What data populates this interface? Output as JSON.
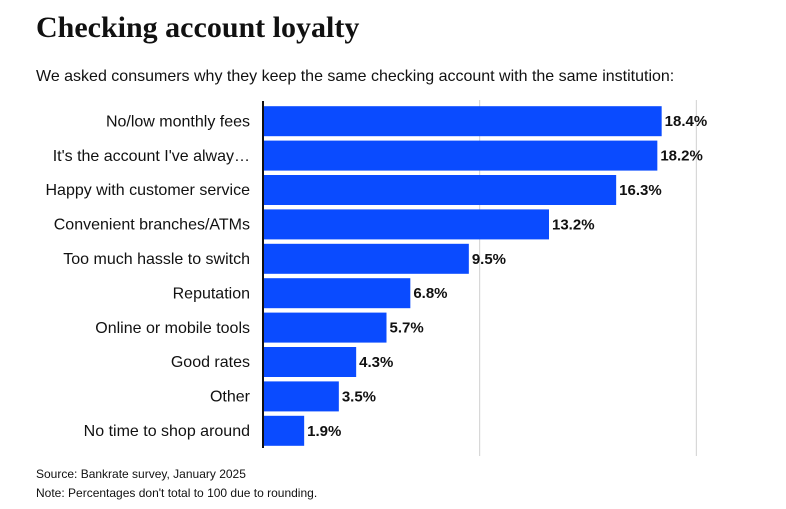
{
  "chart_data": {
    "type": "hbar",
    "title": "Checking account loyalty",
    "subtitle": "We asked consumers why they keep the same checking account with the same institution:",
    "categories": [
      "No/low monthly fees",
      "It's the account I've alway…",
      "Happy with customer service",
      "Convenient branches/ATMs",
      "Too much hassle to switch",
      "Reputation",
      "Online or mobile tools",
      "Good rates",
      "Other",
      "No time to shop around"
    ],
    "values": [
      18.4,
      18.2,
      16.3,
      13.2,
      9.5,
      6.8,
      5.7,
      4.3,
      3.5,
      1.9
    ],
    "value_labels": [
      "18.4%",
      "18.2%",
      "16.3%",
      "13.2%",
      "9.5%",
      "6.8%",
      "5.7%",
      "4.3%",
      "3.5%",
      "1.9%"
    ],
    "color": "#0a4bff",
    "xlim": [
      0,
      24
    ],
    "xticks": [
      10,
      20
    ],
    "grid": true,
    "notes": [
      "Source: Bankrate survey, January 2025",
      "Note: Percentages don't total to 100 due to rounding."
    ]
  }
}
